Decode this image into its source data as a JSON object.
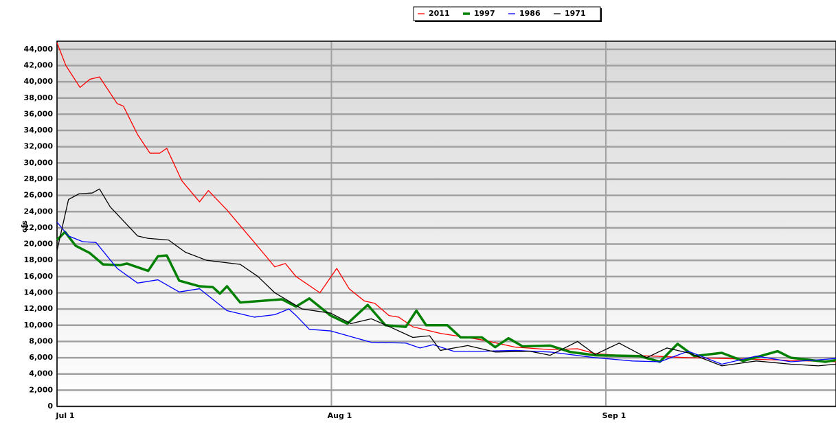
{
  "chart_data": {
    "type": "line",
    "ylabel": "cfs",
    "xlim": [
      0,
      88
    ],
    "xticks": [
      {
        "value": 0,
        "label": "Jul 1"
      },
      {
        "value": 31,
        "label": "Aug 1"
      },
      {
        "value": 62,
        "label": "Sep 1"
      }
    ],
    "ylim": [
      0,
      45000
    ],
    "yticks": [
      0,
      {
        "value": 2000,
        "label": "2,000"
      },
      {
        "value": 4000,
        "label": "4,000"
      },
      {
        "value": 6000,
        "label": "6,000"
      },
      {
        "value": 8000,
        "label": "8,000"
      },
      {
        "value": 10000,
        "label": "10,000"
      },
      {
        "value": 12000,
        "label": "12,000"
      },
      {
        "value": 14000,
        "label": "14,000"
      },
      {
        "value": 16000,
        "label": "16,000"
      },
      {
        "value": 18000,
        "label": "18,000"
      },
      {
        "value": 20000,
        "label": "20,000"
      },
      {
        "value": 22000,
        "label": "22,000"
      },
      {
        "value": 24000,
        "label": "24,000"
      },
      {
        "value": 26000,
        "label": "26,000"
      },
      {
        "value": 28000,
        "label": "28,000"
      },
      {
        "value": 30000,
        "label": "30,000"
      },
      {
        "value": 32000,
        "label": "32,000"
      },
      {
        "value": 34000,
        "label": "34,000"
      },
      {
        "value": 36000,
        "label": "36,000"
      },
      {
        "value": 38000,
        "label": "38,000"
      },
      {
        "value": 40000,
        "label": "40,000"
      },
      {
        "value": 42000,
        "label": "42,000"
      },
      {
        "value": 44000,
        "label": "44,000"
      }
    ],
    "grid": true,
    "series": [
      {
        "name": "2011",
        "color": "#ff0000",
        "width": 1.3,
        "x": [
          0,
          1,
          2.6,
          3.7,
          4.8,
          6.8,
          7.5,
          9.1,
          10.5,
          11.6,
          12.4,
          14.1,
          16.1,
          17.1,
          19.2,
          22.3,
          24.6,
          25.8,
          27,
          29.7,
          31.6,
          33,
          34.7,
          35.9,
          37.5,
          38.6,
          40.2,
          43.3,
          48,
          51.8,
          55.7,
          58.8,
          60.8,
          63.5,
          67.4,
          71.3,
          79,
          88
        ],
        "values": [
          44800,
          42000,
          39300,
          40300,
          40600,
          37300,
          37000,
          33500,
          31200,
          31200,
          31800,
          27800,
          25200,
          26600,
          24200,
          20200,
          17200,
          17600,
          16000,
          14000,
          17000,
          14500,
          13000,
          12700,
          11200,
          11000,
          9800,
          9000,
          8200,
          7300,
          7000,
          7100,
          6500,
          6300,
          6200,
          6000,
          5800,
          5500
        ]
      },
      {
        "name": "1997",
        "color": "#008000",
        "width": 3.5,
        "x": [
          0,
          0.9,
          2.1,
          3.7,
          5.2,
          7.1,
          7.9,
          10.3,
          11.4,
          12.4,
          13.8,
          16.1,
          17.6,
          18.4,
          19.2,
          20.7,
          23.1,
          25.4,
          27,
          28.5,
          30.9,
          32.8,
          35.1,
          37.1,
          39.4,
          40.6,
          41.7,
          44.1,
          45.6,
          48,
          49.5,
          51,
          52.6,
          55.7,
          58,
          60.8,
          65.8,
          68.1,
          70.1,
          72,
          75.1,
          77.5,
          81.4,
          82.9,
          86.8,
          88
        ],
        "values": [
          20500,
          21500,
          19800,
          18900,
          17500,
          17400,
          17600,
          16700,
          18500,
          18600,
          15500,
          14800,
          14700,
          13900,
          14800,
          12800,
          13000,
          13200,
          12300,
          13300,
          11200,
          10200,
          12500,
          10000,
          9800,
          11800,
          10000,
          10000,
          8500,
          8500,
          7300,
          8400,
          7400,
          7500,
          6700,
          6300,
          6200,
          5500,
          7700,
          6200,
          6600,
          5600,
          6800,
          6000,
          5500,
          5700
        ]
      },
      {
        "name": "1986",
        "color": "#0000ff",
        "width": 1.3,
        "x": [
          0,
          1.3,
          2.9,
          4.4,
          6.8,
          9.1,
          11.4,
          13.8,
          16.1,
          19.2,
          22.3,
          24.6,
          26.2,
          27,
          28.5,
          30.9,
          33.2,
          35.5,
          39.4,
          41,
          42.5,
          44.8,
          48,
          51.8,
          55.7,
          60.8,
          65,
          68.1,
          71.3,
          75.1,
          79,
          82.9,
          88
        ],
        "values": [
          22700,
          21000,
          20300,
          20200,
          17000,
          15200,
          15600,
          14100,
          14500,
          11800,
          11000,
          11300,
          12000,
          11200,
          9500,
          9300,
          8600,
          7900,
          7800,
          7200,
          7600,
          6800,
          6800,
          6900,
          6700,
          6000,
          5600,
          5500,
          6800,
          5200,
          6200,
          5500,
          5900
        ]
      },
      {
        "name": "1971",
        "color": "#000000",
        "width": 1.3,
        "x": [
          0,
          1.3,
          2.5,
          4,
          4.8,
          6,
          9.1,
          10.3,
          12.6,
          14.5,
          16.9,
          20.7,
          22.7,
          24.6,
          27.7,
          30.9,
          33.2,
          35.5,
          37.8,
          40.2,
          42.1,
          43.3,
          46.4,
          49.5,
          53.4,
          55.7,
          58.8,
          60.8,
          63.5,
          66.6,
          68.9,
          71.3,
          75.1,
          79,
          82.9,
          86,
          88
        ],
        "values": [
          19200,
          25500,
          26200,
          26300,
          26800,
          24600,
          21000,
          20700,
          20500,
          19000,
          18000,
          17500,
          16000,
          14000,
          12000,
          11500,
          10200,
          10800,
          9700,
          8500,
          8700,
          6900,
          7500,
          6700,
          6800,
          6300,
          8000,
          6400,
          7800,
          6000,
          7200,
          6600,
          5000,
          5600,
          5200,
          5000,
          5200
        ]
      }
    ]
  }
}
